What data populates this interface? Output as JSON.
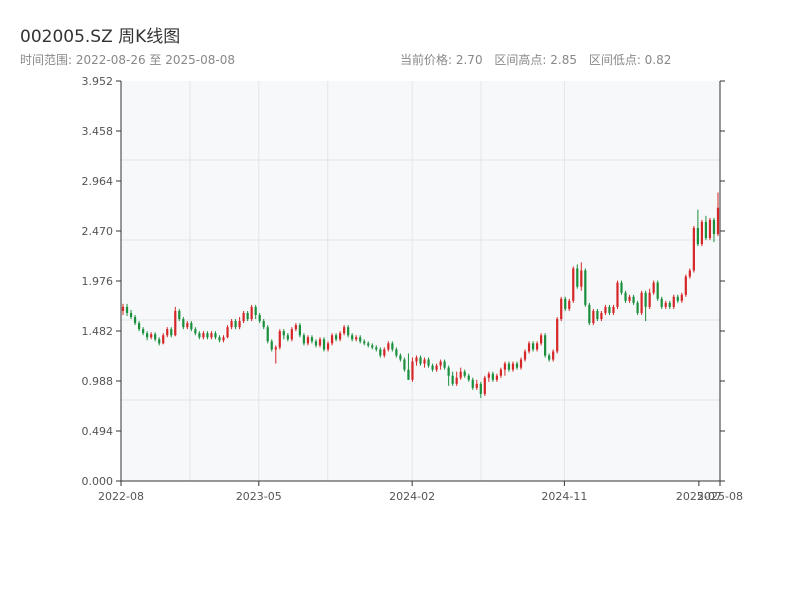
{
  "header": {
    "title": "002005.SZ 周K线图",
    "range_label": "时间范围: 2022-08-26 至 2025-08-08",
    "current_price_label": "当前价格: 2.70",
    "range_high_label": "区间高点: 2.85",
    "range_low_label": "区间低点: 0.82"
  },
  "colors": {
    "up": "#d62728",
    "down": "#1a8f3c",
    "plot_bg": "#f6f8fa",
    "grid": "#e3e6ea",
    "axis": "#333333"
  },
  "chart_data": {
    "type": "candlestick",
    "title": "002005.SZ 周K线图",
    "xlabel": "",
    "ylabel": "",
    "x_range": [
      "2022-08-26",
      "2025-08-08"
    ],
    "ylim": [
      0,
      3.952
    ],
    "y_ticks": [
      "0.000",
      "0.494",
      "0.988",
      "1.482",
      "1.976",
      "2.470",
      "2.964",
      "3.458",
      "3.952"
    ],
    "x_ticks": [
      {
        "label": "2022-08",
        "date": "2022-08-26"
      },
      {
        "label": "2023-05",
        "date": "2023-05-01"
      },
      {
        "label": "2024-02",
        "date": "2024-02-01"
      },
      {
        "label": "2024-11",
        "date": "2024-11-01"
      },
      {
        "label": "2025-07",
        "date": "2025-07-01"
      },
      {
        "label": "2025-08",
        "date": "2025-08-08"
      }
    ],
    "grid": true,
    "current_price": 2.7,
    "range_high": 2.85,
    "range_low": 0.82,
    "candles": [
      [
        1.68,
        1.72,
        1.75,
        1.64
      ],
      [
        1.72,
        1.66,
        1.75,
        1.63
      ],
      [
        1.66,
        1.62,
        1.69,
        1.6
      ],
      [
        1.62,
        1.56,
        1.64,
        1.54
      ],
      [
        1.56,
        1.5,
        1.58,
        1.48
      ],
      [
        1.5,
        1.46,
        1.52,
        1.44
      ],
      [
        1.46,
        1.42,
        1.48,
        1.39
      ],
      [
        1.42,
        1.45,
        1.47,
        1.4
      ],
      [
        1.45,
        1.4,
        1.47,
        1.38
      ],
      [
        1.4,
        1.36,
        1.42,
        1.34
      ],
      [
        1.36,
        1.44,
        1.46,
        1.35
      ],
      [
        1.44,
        1.5,
        1.52,
        1.42
      ],
      [
        1.5,
        1.44,
        1.52,
        1.42
      ],
      [
        1.44,
        1.68,
        1.72,
        1.43
      ],
      [
        1.68,
        1.6,
        1.7,
        1.58
      ],
      [
        1.6,
        1.52,
        1.62,
        1.5
      ],
      [
        1.52,
        1.56,
        1.58,
        1.5
      ],
      [
        1.56,
        1.5,
        1.58,
        1.48
      ],
      [
        1.5,
        1.46,
        1.52,
        1.44
      ],
      [
        1.46,
        1.42,
        1.48,
        1.4
      ],
      [
        1.42,
        1.46,
        1.48,
        1.4
      ],
      [
        1.46,
        1.42,
        1.48,
        1.4
      ],
      [
        1.42,
        1.46,
        1.48,
        1.4
      ],
      [
        1.46,
        1.42,
        1.48,
        1.4
      ],
      [
        1.42,
        1.39,
        1.44,
        1.37
      ],
      [
        1.39,
        1.42,
        1.44,
        1.37
      ],
      [
        1.42,
        1.52,
        1.54,
        1.41
      ],
      [
        1.52,
        1.58,
        1.6,
        1.5
      ],
      [
        1.58,
        1.52,
        1.6,
        1.5
      ],
      [
        1.52,
        1.58,
        1.62,
        1.5
      ],
      [
        1.58,
        1.66,
        1.68,
        1.56
      ],
      [
        1.66,
        1.6,
        1.68,
        1.58
      ],
      [
        1.6,
        1.72,
        1.74,
        1.58
      ],
      [
        1.72,
        1.64,
        1.74,
        1.6
      ],
      [
        1.64,
        1.58,
        1.66,
        1.56
      ],
      [
        1.58,
        1.52,
        1.6,
        1.5
      ],
      [
        1.52,
        1.38,
        1.54,
        1.36
      ],
      [
        1.38,
        1.3,
        1.4,
        1.28
      ],
      [
        1.3,
        1.32,
        1.34,
        1.16
      ],
      [
        1.32,
        1.48,
        1.5,
        1.3
      ],
      [
        1.48,
        1.44,
        1.5,
        1.4
      ],
      [
        1.44,
        1.4,
        1.46,
        1.38
      ],
      [
        1.4,
        1.5,
        1.52,
        1.38
      ],
      [
        1.5,
        1.54,
        1.56,
        1.48
      ],
      [
        1.54,
        1.44,
        1.56,
        1.42
      ],
      [
        1.44,
        1.36,
        1.46,
        1.34
      ],
      [
        1.36,
        1.42,
        1.44,
        1.34
      ],
      [
        1.42,
        1.38,
        1.44,
        1.36
      ],
      [
        1.38,
        1.34,
        1.4,
        1.32
      ],
      [
        1.34,
        1.4,
        1.42,
        1.32
      ],
      [
        1.4,
        1.3,
        1.42,
        1.28
      ],
      [
        1.3,
        1.36,
        1.38,
        1.28
      ],
      [
        1.36,
        1.44,
        1.46,
        1.34
      ],
      [
        1.44,
        1.4,
        1.46,
        1.38
      ],
      [
        1.4,
        1.46,
        1.48,
        1.38
      ],
      [
        1.46,
        1.52,
        1.54,
        1.44
      ],
      [
        1.52,
        1.44,
        1.54,
        1.42
      ],
      [
        1.44,
        1.4,
        1.46,
        1.38
      ],
      [
        1.4,
        1.42,
        1.44,
        1.38
      ],
      [
        1.42,
        1.38,
        1.44,
        1.36
      ],
      [
        1.38,
        1.36,
        1.4,
        1.34
      ],
      [
        1.36,
        1.34,
        1.38,
        1.32
      ],
      [
        1.34,
        1.32,
        1.36,
        1.3
      ],
      [
        1.32,
        1.3,
        1.34,
        1.28
      ],
      [
        1.3,
        1.24,
        1.32,
        1.22
      ],
      [
        1.24,
        1.3,
        1.32,
        1.22
      ],
      [
        1.3,
        1.36,
        1.38,
        1.28
      ],
      [
        1.36,
        1.3,
        1.38,
        1.28
      ],
      [
        1.3,
        1.24,
        1.32,
        1.22
      ],
      [
        1.24,
        1.2,
        1.26,
        1.18
      ],
      [
        1.2,
        1.1,
        1.22,
        1.08
      ],
      [
        1.1,
        1.0,
        1.26,
        1.0
      ],
      [
        1.0,
        1.18,
        1.22,
        0.98
      ],
      [
        1.18,
        1.22,
        1.24,
        1.14
      ],
      [
        1.22,
        1.16,
        1.24,
        1.14
      ],
      [
        1.16,
        1.2,
        1.22,
        1.12
      ],
      [
        1.2,
        1.14,
        1.22,
        1.12
      ],
      [
        1.14,
        1.1,
        1.16,
        1.08
      ],
      [
        1.1,
        1.14,
        1.16,
        1.08
      ],
      [
        1.14,
        1.18,
        1.2,
        1.1
      ],
      [
        1.18,
        1.12,
        1.2,
        1.1
      ],
      [
        1.12,
        1.04,
        1.14,
        0.94
      ],
      [
        1.04,
        0.96,
        1.08,
        0.94
      ],
      [
        0.96,
        1.02,
        1.08,
        0.94
      ],
      [
        1.02,
        1.08,
        1.12,
        1.0
      ],
      [
        1.08,
        1.04,
        1.1,
        1.02
      ],
      [
        1.04,
        1.0,
        1.06,
        0.98
      ],
      [
        1.0,
        0.92,
        1.02,
        0.9
      ],
      [
        0.92,
        0.96,
        1.0,
        0.9
      ],
      [
        0.96,
        0.86,
        0.98,
        0.82
      ],
      [
        0.86,
        1.02,
        1.04,
        0.84
      ],
      [
        1.02,
        1.06,
        1.08,
        0.98
      ],
      [
        1.06,
        1.0,
        1.08,
        0.98
      ],
      [
        1.0,
        1.04,
        1.06,
        0.98
      ],
      [
        1.04,
        1.1,
        1.12,
        1.02
      ],
      [
        1.1,
        1.16,
        1.18,
        1.04
      ],
      [
        1.16,
        1.1,
        1.18,
        1.08
      ],
      [
        1.1,
        1.16,
        1.18,
        1.08
      ],
      [
        1.16,
        1.12,
        1.18,
        1.1
      ],
      [
        1.12,
        1.2,
        1.22,
        1.1
      ],
      [
        1.2,
        1.28,
        1.3,
        1.18
      ],
      [
        1.28,
        1.36,
        1.38,
        1.26
      ],
      [
        1.36,
        1.3,
        1.38,
        1.28
      ],
      [
        1.3,
        1.36,
        1.38,
        1.28
      ],
      [
        1.36,
        1.44,
        1.46,
        1.34
      ],
      [
        1.44,
        1.24,
        1.46,
        1.22
      ],
      [
        1.24,
        1.2,
        1.26,
        1.18
      ],
      [
        1.2,
        1.28,
        1.3,
        1.18
      ],
      [
        1.28,
        1.6,
        1.62,
        1.26
      ],
      [
        1.6,
        1.8,
        1.82,
        1.58
      ],
      [
        1.8,
        1.7,
        1.82,
        1.68
      ],
      [
        1.7,
        1.78,
        1.8,
        1.68
      ],
      [
        1.78,
        2.1,
        2.12,
        1.76
      ],
      [
        2.1,
        1.92,
        2.14,
        1.9
      ],
      [
        1.92,
        2.08,
        2.16,
        1.88
      ],
      [
        2.08,
        1.74,
        2.1,
        1.72
      ],
      [
        1.74,
        1.56,
        1.76,
        1.54
      ],
      [
        1.56,
        1.68,
        1.7,
        1.54
      ],
      [
        1.68,
        1.6,
        1.7,
        1.58
      ],
      [
        1.6,
        1.66,
        1.68,
        1.58
      ],
      [
        1.66,
        1.72,
        1.74,
        1.64
      ],
      [
        1.72,
        1.66,
        1.74,
        1.64
      ],
      [
        1.66,
        1.72,
        1.74,
        1.64
      ],
      [
        1.72,
        1.96,
        1.98,
        1.7
      ],
      [
        1.96,
        1.86,
        1.98,
        1.84
      ],
      [
        1.86,
        1.78,
        1.88,
        1.76
      ],
      [
        1.78,
        1.82,
        1.84,
        1.76
      ],
      [
        1.82,
        1.76,
        1.84,
        1.74
      ],
      [
        1.76,
        1.66,
        1.78,
        1.64
      ],
      [
        1.66,
        1.86,
        1.88,
        1.64
      ],
      [
        1.86,
        1.72,
        1.88,
        1.58
      ],
      [
        1.72,
        1.86,
        1.9,
        1.7
      ],
      [
        1.86,
        1.96,
        1.98,
        1.84
      ],
      [
        1.96,
        1.8,
        1.98,
        1.78
      ],
      [
        1.8,
        1.72,
        1.82,
        1.7
      ],
      [
        1.72,
        1.76,
        1.78,
        1.7
      ],
      [
        1.76,
        1.72,
        1.78,
        1.7
      ],
      [
        1.72,
        1.82,
        1.84,
        1.7
      ],
      [
        1.82,
        1.78,
        1.84,
        1.76
      ],
      [
        1.78,
        1.84,
        1.86,
        1.76
      ],
      [
        1.84,
        2.02,
        2.04,
        1.82
      ],
      [
        2.02,
        2.08,
        2.1,
        2.0
      ],
      [
        2.08,
        2.5,
        2.52,
        2.06
      ],
      [
        2.5,
        2.34,
        2.68,
        2.32
      ],
      [
        2.34,
        2.56,
        2.58,
        2.32
      ],
      [
        2.56,
        2.4,
        2.62,
        2.38
      ],
      [
        2.4,
        2.58,
        2.6,
        2.38
      ],
      [
        2.58,
        2.44,
        2.6,
        2.36
      ],
      [
        2.44,
        2.7,
        2.85,
        2.42
      ]
    ]
  }
}
